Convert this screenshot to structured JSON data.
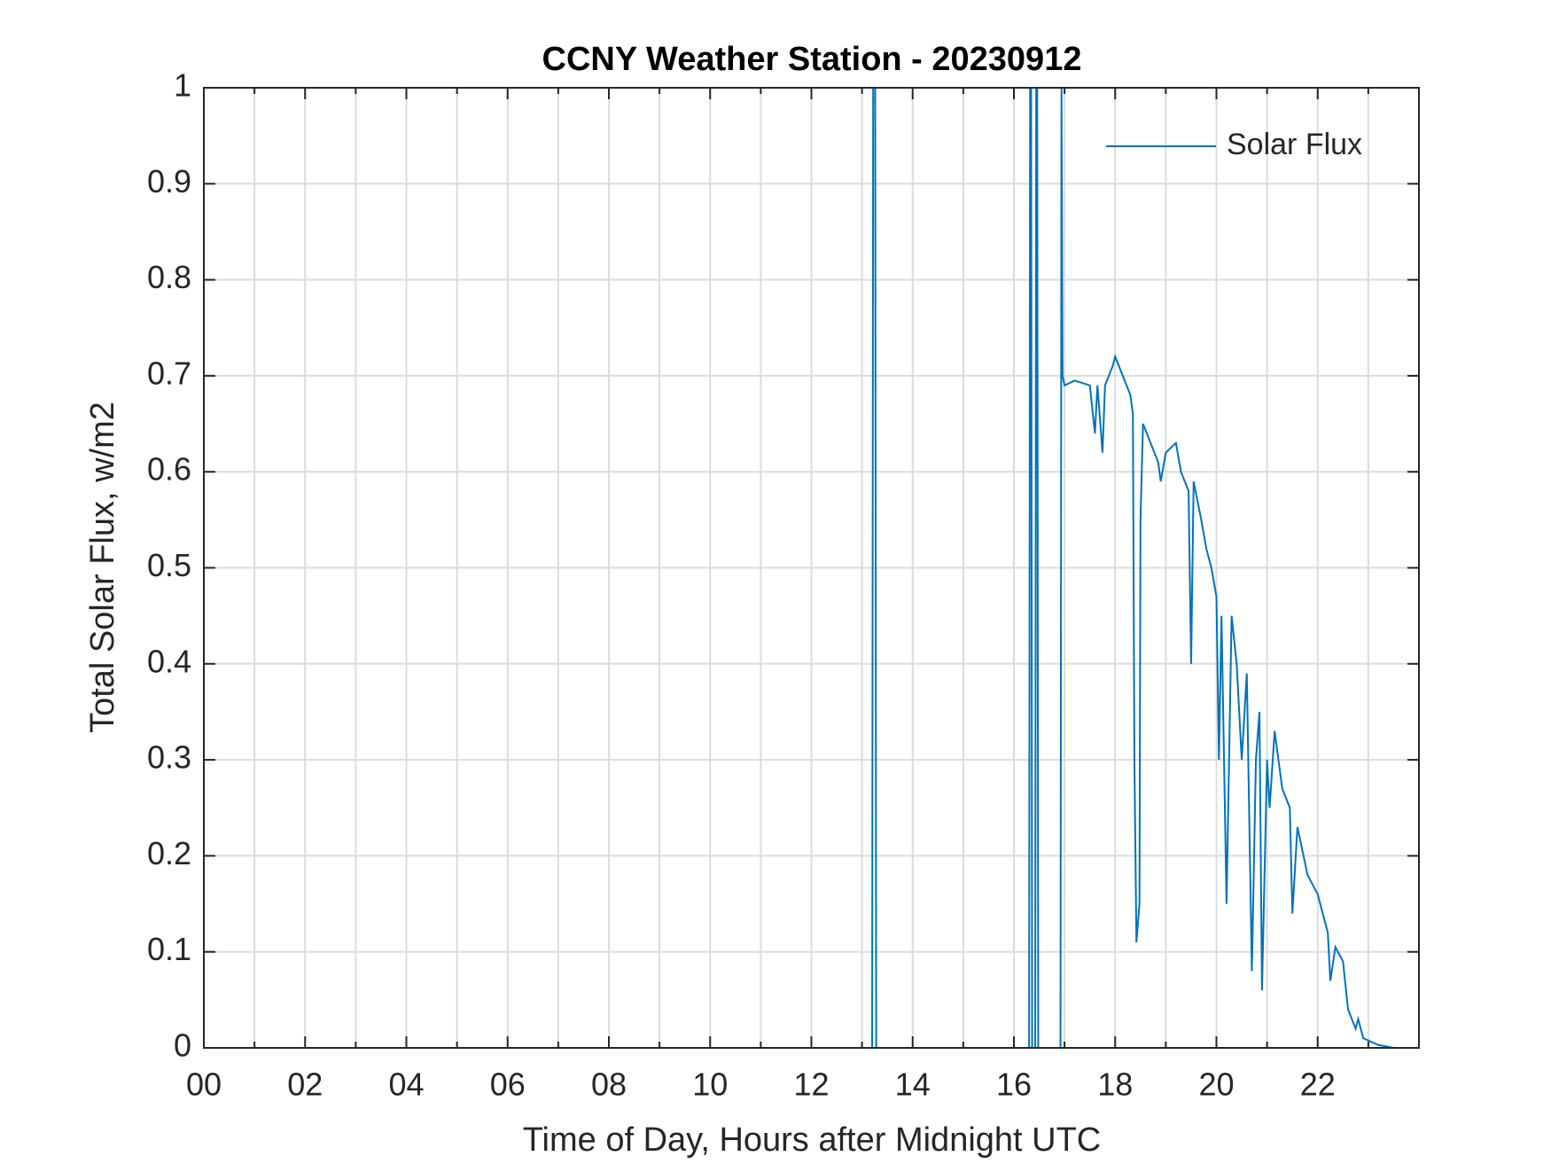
{
  "chart_data": {
    "type": "line",
    "title": "CCNY Weather Station - 20230912",
    "x_label": "Time of Day, Hours after Midnight UTC",
    "y_label": "Total Solar Flux, w/m2",
    "xlim": [
      0,
      24
    ],
    "ylim": [
      0,
      1
    ],
    "xticks": [
      {
        "value": 0,
        "label": "00"
      },
      {
        "value": 2,
        "label": "02"
      },
      {
        "value": 4,
        "label": "04"
      },
      {
        "value": 6,
        "label": "06"
      },
      {
        "value": 8,
        "label": "08"
      },
      10,
      12,
      14,
      16,
      18,
      20,
      22
    ],
    "x_minor_ticks": [
      1,
      3,
      5,
      7,
      9,
      11,
      13,
      15,
      17,
      19,
      21,
      23
    ],
    "yticks": [
      0,
      0.1,
      0.2,
      0.3,
      0.4,
      0.5,
      0.6,
      0.7,
      0.8,
      0.9,
      1
    ],
    "grid": true,
    "legend": "upper right",
    "series": [
      {
        "name": "Solar Flux",
        "color": "#0072bd",
        "x": [
          0,
          13.2,
          13.22,
          13.26,
          13.28,
          16.3,
          16.32,
          16.34,
          16.36,
          16.42,
          16.44,
          16.46,
          16.48,
          16.92,
          16.94,
          16.96,
          17.0,
          17.2,
          17.5,
          17.6,
          17.65,
          17.75,
          17.8,
          17.95,
          18.0,
          18.15,
          18.3,
          18.35,
          18.38,
          18.42,
          18.48,
          18.5,
          18.55,
          18.7,
          18.85,
          18.9,
          19.0,
          19.2,
          19.3,
          19.45,
          19.5,
          19.55,
          19.7,
          19.8,
          19.9,
          20.0,
          20.05,
          20.1,
          20.2,
          20.3,
          20.4,
          20.5,
          20.6,
          20.7,
          20.78,
          20.85,
          20.9,
          21.0,
          21.05,
          21.15,
          21.3,
          21.45,
          21.5,
          21.6,
          21.8,
          22.0,
          22.2,
          22.25,
          22.35,
          22.5,
          22.6,
          22.75,
          22.8,
          22.9,
          23.2,
          23.5,
          24
        ],
        "values": [
          0,
          0,
          1,
          1,
          0,
          0,
          1,
          1,
          0,
          0,
          1,
          1,
          0,
          0,
          1,
          0.7,
          0.69,
          0.695,
          0.69,
          0.64,
          0.69,
          0.62,
          0.69,
          0.71,
          0.72,
          0.7,
          0.68,
          0.66,
          0.3,
          0.11,
          0.15,
          0.55,
          0.65,
          0.63,
          0.61,
          0.59,
          0.62,
          0.63,
          0.6,
          0.58,
          0.4,
          0.59,
          0.55,
          0.52,
          0.5,
          0.47,
          0.3,
          0.45,
          0.15,
          0.45,
          0.4,
          0.3,
          0.39,
          0.08,
          0.3,
          0.35,
          0.06,
          0.3,
          0.25,
          0.33,
          0.27,
          0.25,
          0.14,
          0.23,
          0.18,
          0.16,
          0.12,
          0.07,
          0.105,
          0.09,
          0.04,
          0.02,
          0.03,
          0.01,
          0.003,
          0,
          0
        ]
      }
    ]
  }
}
